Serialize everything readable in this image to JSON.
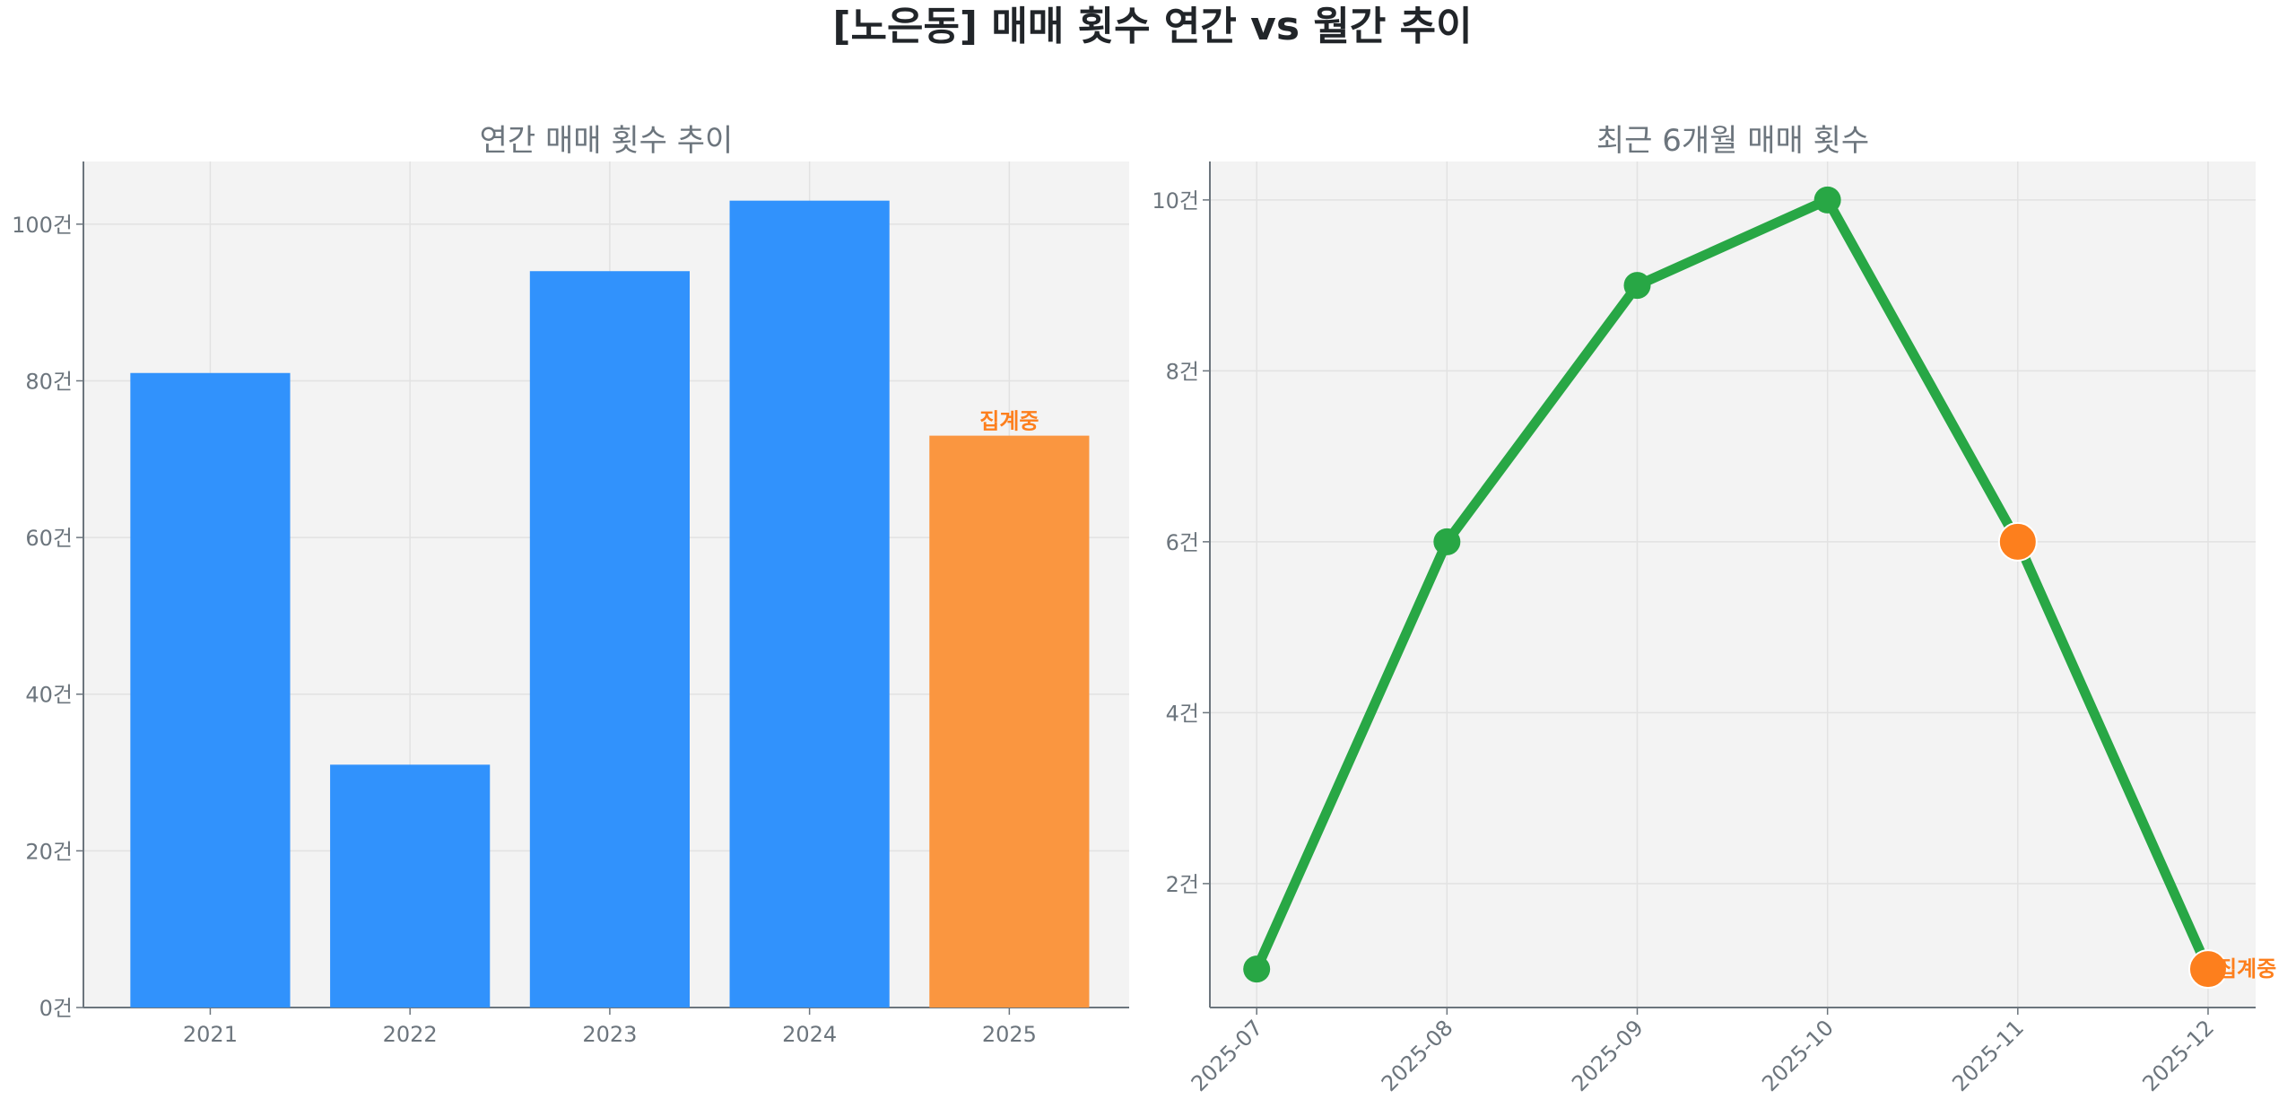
{
  "title": "[노은동] 매매 횟수 연간 vs 월간 추이",
  "colors": {
    "bar": "#3192fc",
    "bar_partial": "#fa9640",
    "line": "#28a745",
    "marker_partial": "#fd7f1d",
    "label": "#fd7f1d",
    "axes_bg": "#f3f3f3",
    "text": "#6c757d"
  },
  "chart_data": [
    {
      "type": "bar",
      "title": "연간 매매 횟수 추이",
      "categories": [
        "2021",
        "2022",
        "2023",
        "2024",
        "2025"
      ],
      "values": [
        81,
        31,
        94,
        103,
        73
      ],
      "partial": [
        false,
        false,
        false,
        false,
        true
      ],
      "annotation": "집계중",
      "ylim": [
        0,
        108
      ],
      "yticks": [
        0,
        20,
        40,
        60,
        80,
        100
      ],
      "ytick_labels": [
        "0건",
        "20건",
        "40건",
        "60건",
        "80건",
        "100건"
      ],
      "grid": true
    },
    {
      "type": "line",
      "title": "최근 6개월 매매 횟수",
      "categories": [
        "2025-07",
        "2025-08",
        "2025-09",
        "2025-10",
        "2025-11",
        "2025-12"
      ],
      "values": [
        1,
        6,
        9,
        10,
        6,
        1
      ],
      "partial": [
        false,
        false,
        false,
        false,
        true,
        true
      ],
      "annotation": "집계중",
      "ylim": [
        0.55,
        10.45
      ],
      "yticks": [
        2,
        4,
        6,
        8,
        10
      ],
      "ytick_labels": [
        "2건",
        "4건",
        "6건",
        "8건",
        "10건"
      ],
      "grid": true
    }
  ]
}
